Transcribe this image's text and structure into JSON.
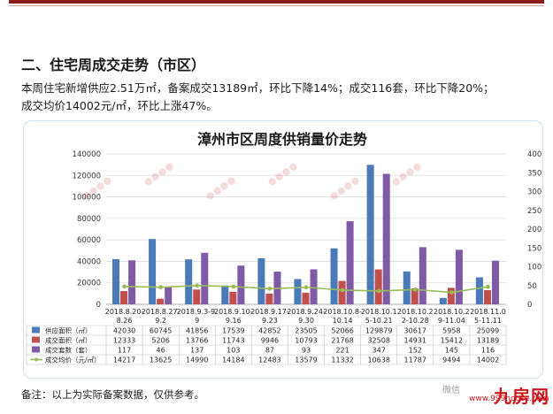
{
  "section_title": "二、住宅周成交走势（市区）",
  "summary": {
    "line1": "本周住宅新增供应2.51万㎡，备案成交13189㎡，环比下降14%；成交116套，环比下降20%；",
    "line2": "成交均价14002元/㎡，环比上涨47%。"
  },
  "footnote": "备注：以上为实际备案数据，仅供参考。",
  "wechat_text": "微信",
  "brand": {
    "logo_text": "九房网",
    "url": "www.999house.com"
  },
  "colors": {
    "supply": "#4a7ab8",
    "deal_area": "#c0504d",
    "deal_units": "#7f5ba6",
    "avg_price": "#9bbb59",
    "top_bar": "#8a1c1c"
  },
  "chart_data": {
    "type": "bar",
    "title": "漳州市区周度供销量价走势",
    "categories": [
      "2018.8.20-8.26",
      "2018.8.27-9.2",
      "2018.9.3-9.9",
      "2018.9.10-9.16",
      "2018.9.17-9.23",
      "2018.9.24-9.30",
      "2018.10.8-10.14",
      "2018.10.15-10.21",
      "2018.10.22-10.28",
      "2018.10.29-11.04",
      "2018.11.05-11.11"
    ],
    "category_lines": [
      [
        "2018.8.20-",
        "8.26"
      ],
      [
        "2018.8.27-",
        "9.2"
      ],
      [
        "2018.9.3-9.",
        "9"
      ],
      [
        "2018.9.10-",
        "9.16"
      ],
      [
        "2018.9.17-",
        "9.23"
      ],
      [
        "2018.9.24-",
        "9.30"
      ],
      [
        "2018.10.8-",
        "10.14"
      ],
      [
        "2018.10.1",
        "5-10.21"
      ],
      [
        "2018.10.2",
        "2-10.28"
      ],
      [
        "2018.10.2",
        "9-11.04"
      ],
      [
        "2018.11.0",
        "5-11.11"
      ]
    ],
    "left_axis": {
      "min": 0,
      "max": 140000,
      "ticks": [
        0,
        20000,
        40000,
        60000,
        80000,
        100000,
        120000,
        140000
      ]
    },
    "right_axis": {
      "min": 0,
      "max": 400,
      "ticks": [
        0,
        50,
        100,
        150,
        200,
        250,
        300,
        350,
        400
      ]
    },
    "series": [
      {
        "name": "供应面积（㎡）",
        "kind": "bar",
        "axis": "left",
        "values": [
          42030,
          60745,
          41856,
          17539,
          42852,
          23505,
          52066,
          129879,
          30617,
          5958,
          25099
        ]
      },
      {
        "name": "成交面积（㎡）",
        "kind": "bar",
        "axis": "left",
        "values": [
          12333,
          5206,
          13766,
          11743,
          9946,
          10793,
          21768,
          32508,
          14931,
          15412,
          13189
        ]
      },
      {
        "name": "成交套数（套）",
        "kind": "bar",
        "axis": "right",
        "values": [
          117,
          46,
          137,
          103,
          87,
          93,
          221,
          347,
          152,
          145,
          116
        ]
      },
      {
        "name": "成交均价（元/㎡）",
        "kind": "line",
        "axis": "right",
        "scale_divisor": 300,
        "values": [
          14217,
          13625,
          14990,
          14184,
          12483,
          13579,
          11332,
          10638,
          11787,
          9494,
          14002
        ]
      }
    ],
    "legend_position": "table-below",
    "grid": true
  }
}
